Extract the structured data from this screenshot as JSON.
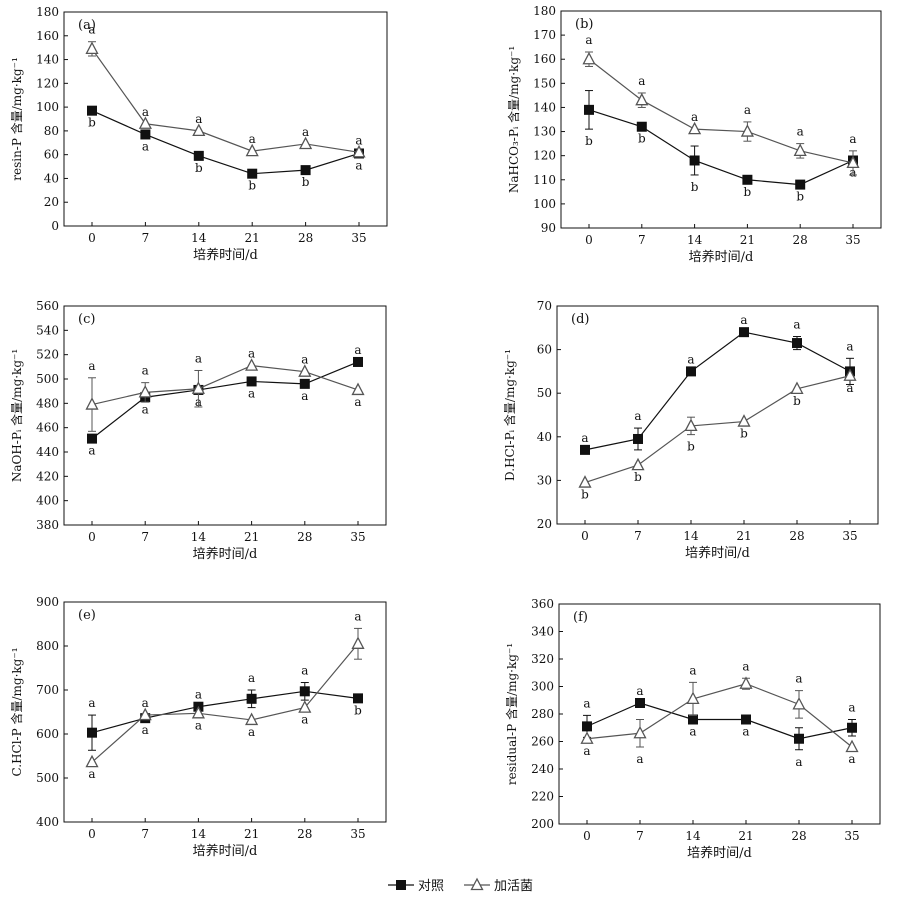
{
  "chart_data": [
    {
      "type": "line",
      "panel_label": "(a)",
      "ylabel": "resin-P 含量/mg·kg⁻¹",
      "xlabel": "培养时间/d",
      "x": [
        0,
        7,
        14,
        21,
        28,
        35
      ],
      "xticks": [
        "0",
        "7",
        "14",
        "21",
        "28",
        "35"
      ],
      "ylim": [
        0,
        180
      ],
      "yticks": [
        0,
        20,
        40,
        60,
        80,
        100,
        120,
        140,
        160,
        180
      ],
      "series": [
        {
          "name": "对照",
          "marker": "filled-square",
          "values": [
            97,
            77,
            59,
            44,
            47,
            61
          ],
          "errors": [
            0,
            0,
            0,
            0,
            0,
            0
          ],
          "letters": [
            "b",
            "a",
            "b",
            "b",
            "b",
            "a"
          ],
          "letter_pos": [
            "below",
            "below",
            "below",
            "below",
            "below",
            "below"
          ]
        },
        {
          "name": "加活菌",
          "marker": "open-triangle",
          "values": [
            149,
            86,
            80,
            63,
            69,
            62
          ],
          "errors": [
            6,
            0,
            0,
            0,
            0,
            0
          ],
          "letters": [
            "a",
            "a",
            "a",
            "a",
            "a",
            "a"
          ],
          "letter_pos": [
            "above",
            "above",
            "above",
            "above",
            "above",
            "above"
          ]
        }
      ]
    },
    {
      "type": "line",
      "panel_label": "(b)",
      "ylabel": "NaHCO₃-Pᵢ 含量/mg·kg⁻¹",
      "xlabel": "培养时间/d",
      "x": [
        0,
        7,
        14,
        21,
        28,
        35
      ],
      "xticks": [
        "0",
        "7",
        "14",
        "21",
        "28",
        "35"
      ],
      "ylim": [
        90,
        180
      ],
      "yticks": [
        90,
        100,
        110,
        120,
        130,
        140,
        150,
        160,
        170,
        180
      ],
      "series": [
        {
          "name": "对照",
          "marker": "filled-square",
          "values": [
            139,
            132,
            118,
            110,
            108,
            118
          ],
          "errors": [
            8,
            0,
            6,
            0,
            0,
            0
          ],
          "letters": [
            "b",
            "b",
            "b",
            "b",
            "b",
            "a"
          ],
          "letter_pos": [
            "below",
            "below",
            "below",
            "below",
            "below",
            "below"
          ]
        },
        {
          "name": "加活菌",
          "marker": "open-triangle",
          "values": [
            160,
            143,
            131,
            130,
            122,
            117
          ],
          "errors": [
            3,
            3,
            0,
            4,
            3,
            5
          ],
          "letters": [
            "a",
            "a",
            "a",
            "a",
            "a",
            "a"
          ],
          "letter_pos": [
            "above",
            "above",
            "above",
            "above",
            "above",
            "above"
          ]
        }
      ]
    },
    {
      "type": "line",
      "panel_label": "(c)",
      "ylabel": "NaOH-Pᵢ 含量/mg·kg⁻¹",
      "xlabel": "培养时间/d",
      "x": [
        0,
        7,
        14,
        21,
        28,
        35
      ],
      "xticks": [
        "0",
        "7",
        "14",
        "21",
        "28",
        "35"
      ],
      "ylim": [
        380,
        560
      ],
      "yticks": [
        380,
        400,
        420,
        440,
        460,
        480,
        500,
        520,
        540,
        560
      ],
      "series": [
        {
          "name": "对照",
          "marker": "filled-square",
          "values": [
            451,
            485,
            491,
            498,
            496,
            514
          ],
          "errors": [
            0,
            0,
            0,
            0,
            0,
            0
          ],
          "letters": [
            "a",
            "a",
            "a",
            "a",
            "a",
            "a"
          ],
          "letter_pos": [
            "below",
            "below",
            "below",
            "below",
            "below",
            "above"
          ]
        },
        {
          "name": "加活菌",
          "marker": "open-triangle",
          "values": [
            479,
            489,
            492,
            511,
            506,
            491
          ],
          "errors": [
            22,
            8,
            15,
            0,
            0,
            0
          ],
          "letters": [
            "a",
            "a",
            "a",
            "a",
            "a",
            "a"
          ],
          "letter_pos": [
            "above",
            "above",
            "above",
            "above",
            "above",
            "below"
          ]
        }
      ]
    },
    {
      "type": "line",
      "panel_label": "(d)",
      "ylabel": "D.HCl-Pᵢ 含量/mg·kg⁻¹",
      "xlabel": "培养时间/d",
      "x": [
        0,
        7,
        14,
        21,
        28,
        35
      ],
      "xticks": [
        "0",
        "7",
        "14",
        "21",
        "28",
        "35"
      ],
      "ylim": [
        20,
        70
      ],
      "yticks": [
        20,
        30,
        40,
        50,
        60,
        70
      ],
      "series": [
        {
          "name": "对照",
          "marker": "filled-square",
          "values": [
            37,
            39.5,
            55,
            64,
            61.5,
            55
          ],
          "errors": [
            0,
            2.5,
            0,
            0,
            1.5,
            3
          ],
          "letters": [
            "a",
            "a",
            "a",
            "a",
            "a",
            "a"
          ],
          "letter_pos": [
            "above",
            "above",
            "above",
            "above",
            "above",
            "above"
          ]
        },
        {
          "name": "加活菌",
          "marker": "open-triangle",
          "values": [
            29.5,
            33.5,
            42.5,
            43.5,
            51,
            54
          ],
          "errors": [
            0,
            0,
            2,
            0,
            0,
            0
          ],
          "letters": [
            "b",
            "b",
            "b",
            "b",
            "b",
            "a"
          ],
          "letter_pos": [
            "below",
            "below",
            "below",
            "below",
            "below",
            "below"
          ]
        }
      ]
    },
    {
      "type": "line",
      "panel_label": "(e)",
      "ylabel": "C.HCl-P 含量/mg·kg⁻¹",
      "xlabel": "培养时间/d",
      "x": [
        0,
        7,
        14,
        21,
        28,
        35
      ],
      "xticks": [
        "0",
        "7",
        "14",
        "21",
        "28",
        "35"
      ],
      "ylim": [
        400,
        900
      ],
      "yticks": [
        400,
        500,
        600,
        700,
        800,
        900
      ],
      "series": [
        {
          "name": "对照",
          "marker": "filled-square",
          "values": [
            603,
            636,
            662,
            680,
            697,
            681
          ],
          "errors": [
            40,
            0,
            0,
            20,
            20,
            0
          ],
          "letters": [
            "a",
            "a",
            "a",
            "a",
            "a",
            "b"
          ],
          "letter_pos": [
            "above",
            "below",
            "above",
            "above",
            "above",
            "below"
          ]
        },
        {
          "name": "加活菌",
          "marker": "open-triangle",
          "values": [
            536,
            643,
            647,
            632,
            660,
            805
          ],
          "errors": [
            0,
            0,
            0,
            0,
            0,
            35
          ],
          "letters": [
            "a",
            "a",
            "a",
            "a",
            "a",
            "a"
          ],
          "letter_pos": [
            "below",
            "above",
            "below",
            "below",
            "below",
            "above"
          ]
        }
      ]
    },
    {
      "type": "line",
      "panel_label": "(f)",
      "ylabel": "residual-P 含量/mg·kg⁻¹",
      "xlabel": "培养时间/d",
      "x": [
        0,
        7,
        14,
        21,
        28,
        35
      ],
      "xticks": [
        "0",
        "7",
        "14",
        "21",
        "28",
        "35"
      ],
      "ylim": [
        200,
        360
      ],
      "yticks": [
        200,
        220,
        240,
        260,
        280,
        300,
        320,
        340,
        360
      ],
      "series": [
        {
          "name": "对照",
          "marker": "filled-square",
          "values": [
            271,
            288,
            276,
            276,
            262,
            270
          ],
          "errors": [
            8,
            0,
            0,
            0,
            8,
            6
          ],
          "letters": [
            "a",
            "a",
            "a",
            "a",
            "a",
            "a"
          ],
          "letter_pos": [
            "above",
            "above",
            "below",
            "below",
            "below",
            "above"
          ]
        },
        {
          "name": "加活菌",
          "marker": "open-triangle",
          "values": [
            262,
            266,
            291,
            302,
            287,
            256
          ],
          "errors": [
            0,
            10,
            12,
            4,
            10,
            0
          ],
          "letters": [
            "a",
            "a",
            "a",
            "a",
            "a",
            "a"
          ],
          "letter_pos": [
            "below",
            "below",
            "above",
            "above",
            "above",
            "below"
          ]
        }
      ]
    }
  ],
  "legend": {
    "placement": "bottom-center",
    "items": [
      {
        "name": "对照",
        "marker": "filled-square"
      },
      {
        "name": "加活菌",
        "marker": "open-triangle"
      }
    ]
  }
}
